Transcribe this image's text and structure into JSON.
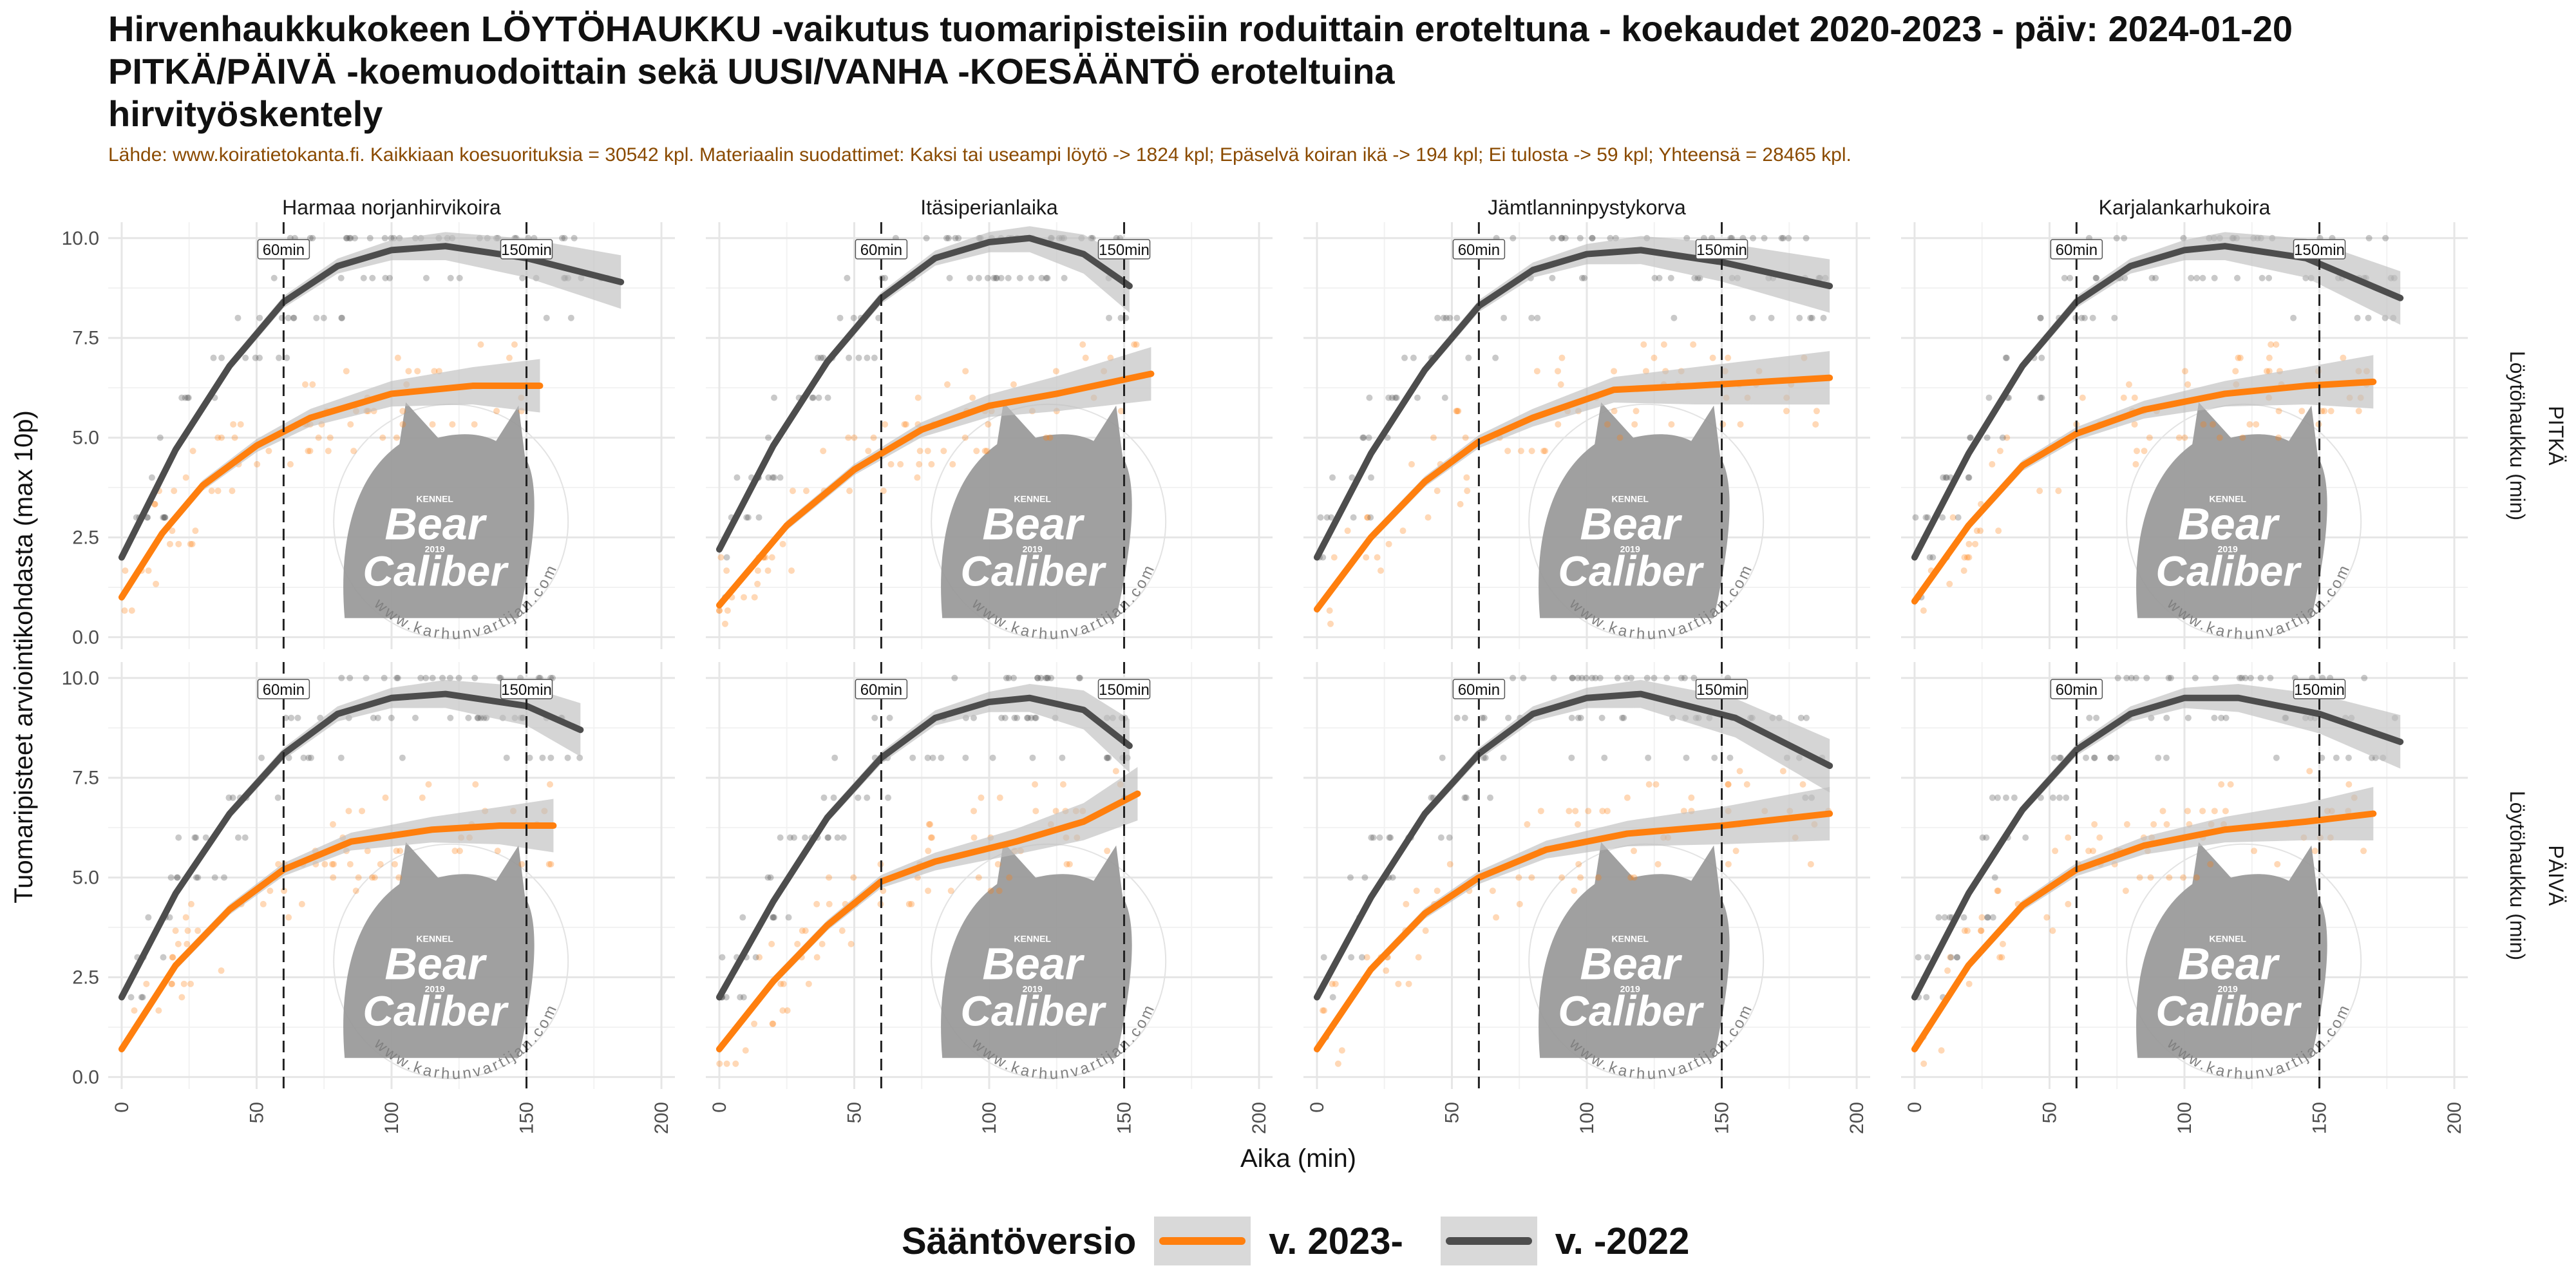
{
  "title_lines": [
    "Hirvenhaukkukokeen LÖYTÖHAUKKU -vaikutus tuomaripisteisiin roduittain eroteltuna - koekaudet 2020-2023 - päiv: 2024-01-20",
    "PITKÄ/PÄIVÄ -koemuodoittain sekä UUSI/VANHA -KOESÄÄNTÖ eroteltuina",
    "hirvityöskentely"
  ],
  "subtitle": "Lähde: www.koiratietokanta.fi. Kaikkiaan koesuorituksia = 30542 kpl. Materiaalin suodattimet: Kaksi tai useampi löytö -> 1824 kpl; Epäselvä koiran ikä -> 194 kpl; Ei tulosta -> 59 kpl; Yhteensä = 28465 kpl.",
  "colors": {
    "new_rule": "#ff7f0e",
    "old_rule": "#4d4d4d",
    "ribbon": "#bfbfbf"
  },
  "legend": {
    "title": "Sääntöversio",
    "items": [
      {
        "label": "v. 2023-",
        "color": "#ff7f0e"
      },
      {
        "label": "v. -2022",
        "color": "#4d4d4d"
      }
    ]
  },
  "watermark": {
    "line1": "Bear",
    "line2": "Caliber",
    "small": "KENNEL",
    "year": "2019",
    "url": "www.karhunvartijan.com"
  },
  "chart_data": {
    "type": "scatter",
    "facets": {
      "columns": [
        "Harmaa norjanhirvikoira",
        "Itäsiperianlaika",
        "Jämtlanninpystykorva",
        "Karjalankarhukoira"
      ],
      "rows": [
        {
          "label": "PITKÄ",
          "sublabel": "Löytöhaukku (min)"
        },
        {
          "label": "PÄIVÄ",
          "sublabel": "Löytöhaukku (min)"
        }
      ]
    },
    "xlabel": "Aika (min)",
    "ylabel": "Tuomaripisteet arviointikohdasta (max 10p)",
    "xlim": [
      -5,
      205
    ],
    "ylim": [
      -0.3,
      10.4
    ],
    "xticks": [
      0,
      50,
      100,
      150,
      200
    ],
    "yticks": [
      "0.0",
      "2.5",
      "5.0",
      "7.5",
      "10.0"
    ],
    "vlines": [
      {
        "x": 60,
        "label": "60min"
      },
      {
        "x": 150,
        "label": "150min"
      }
    ],
    "series": [
      {
        "name": "v. 2023-",
        "color": "#ff7f0e",
        "curves": [
          [
            [
              0,
              1.0
            ],
            [
              15,
              2.6
            ],
            [
              30,
              3.8
            ],
            [
              50,
              4.8
            ],
            [
              70,
              5.5
            ],
            [
              100,
              6.1
            ],
            [
              130,
              6.3
            ],
            [
              155,
              6.3
            ]
          ],
          [
            [
              0,
              0.8
            ],
            [
              25,
              2.8
            ],
            [
              50,
              4.2
            ],
            [
              75,
              5.2
            ],
            [
              100,
              5.8
            ],
            [
              125,
              6.1
            ],
            [
              160,
              6.6
            ]
          ],
          [
            [
              0,
              0.7
            ],
            [
              20,
              2.5
            ],
            [
              40,
              3.9
            ],
            [
              60,
              4.9
            ],
            [
              80,
              5.5
            ],
            [
              110,
              6.2
            ],
            [
              140,
              6.3
            ],
            [
              190,
              6.5
            ]
          ],
          [
            [
              0,
              0.9
            ],
            [
              20,
              2.8
            ],
            [
              40,
              4.3
            ],
            [
              60,
              5.1
            ],
            [
              85,
              5.7
            ],
            [
              115,
              6.1
            ],
            [
              145,
              6.3
            ],
            [
              170,
              6.4
            ]
          ],
          [
            [
              0,
              0.7
            ],
            [
              20,
              2.8
            ],
            [
              40,
              4.2
            ],
            [
              60,
              5.2
            ],
            [
              85,
              5.9
            ],
            [
              115,
              6.2
            ],
            [
              140,
              6.3
            ],
            [
              160,
              6.3
            ]
          ],
          [
            [
              0,
              0.7
            ],
            [
              20,
              2.4
            ],
            [
              40,
              3.8
            ],
            [
              60,
              4.9
            ],
            [
              80,
              5.4
            ],
            [
              110,
              5.9
            ],
            [
              135,
              6.4
            ],
            [
              155,
              7.1
            ]
          ],
          [
            [
              0,
              0.7
            ],
            [
              20,
              2.7
            ],
            [
              40,
              4.1
            ],
            [
              60,
              5.0
            ],
            [
              85,
              5.7
            ],
            [
              115,
              6.1
            ],
            [
              150,
              6.3
            ],
            [
              190,
              6.6
            ]
          ],
          [
            [
              0,
              0.7
            ],
            [
              20,
              2.8
            ],
            [
              40,
              4.3
            ],
            [
              60,
              5.2
            ],
            [
              85,
              5.8
            ],
            [
              115,
              6.2
            ],
            [
              145,
              6.4
            ],
            [
              170,
              6.6
            ]
          ]
        ]
      },
      {
        "name": "v. -2022",
        "color": "#4d4d4d",
        "curves": [
          [
            [
              0,
              2.0
            ],
            [
              20,
              4.7
            ],
            [
              40,
              6.8
            ],
            [
              60,
              8.4
            ],
            [
              80,
              9.3
            ],
            [
              100,
              9.7
            ],
            [
              120,
              9.8
            ],
            [
              150,
              9.5
            ],
            [
              185,
              8.9
            ]
          ],
          [
            [
              0,
              2.2
            ],
            [
              20,
              4.8
            ],
            [
              40,
              6.9
            ],
            [
              60,
              8.5
            ],
            [
              80,
              9.5
            ],
            [
              100,
              9.9
            ],
            [
              115,
              10.0
            ],
            [
              135,
              9.6
            ],
            [
              152,
              8.8
            ]
          ],
          [
            [
              0,
              2.0
            ],
            [
              20,
              4.6
            ],
            [
              40,
              6.7
            ],
            [
              60,
              8.3
            ],
            [
              80,
              9.2
            ],
            [
              100,
              9.6
            ],
            [
              120,
              9.7
            ],
            [
              150,
              9.4
            ],
            [
              190,
              8.8
            ]
          ],
          [
            [
              0,
              2.0
            ],
            [
              20,
              4.6
            ],
            [
              40,
              6.8
            ],
            [
              60,
              8.4
            ],
            [
              80,
              9.3
            ],
            [
              100,
              9.7
            ],
            [
              115,
              9.8
            ],
            [
              145,
              9.5
            ],
            [
              180,
              8.5
            ]
          ],
          [
            [
              0,
              2.0
            ],
            [
              20,
              4.6
            ],
            [
              40,
              6.6
            ],
            [
              60,
              8.1
            ],
            [
              80,
              9.1
            ],
            [
              100,
              9.5
            ],
            [
              120,
              9.6
            ],
            [
              150,
              9.3
            ],
            [
              170,
              8.7
            ]
          ],
          [
            [
              0,
              2.0
            ],
            [
              20,
              4.4
            ],
            [
              40,
              6.5
            ],
            [
              60,
              8.0
            ],
            [
              80,
              9.0
            ],
            [
              100,
              9.4
            ],
            [
              115,
              9.5
            ],
            [
              135,
              9.2
            ],
            [
              152,
              8.3
            ]
          ],
          [
            [
              0,
              2.0
            ],
            [
              20,
              4.5
            ],
            [
              40,
              6.6
            ],
            [
              60,
              8.1
            ],
            [
              80,
              9.1
            ],
            [
              100,
              9.5
            ],
            [
              120,
              9.6
            ],
            [
              155,
              9.0
            ],
            [
              190,
              7.8
            ]
          ],
          [
            [
              0,
              2.0
            ],
            [
              20,
              4.6
            ],
            [
              40,
              6.7
            ],
            [
              60,
              8.2
            ],
            [
              80,
              9.1
            ],
            [
              100,
              9.5
            ],
            [
              120,
              9.5
            ],
            [
              150,
              9.1
            ],
            [
              180,
              8.4
            ]
          ]
        ]
      }
    ]
  }
}
